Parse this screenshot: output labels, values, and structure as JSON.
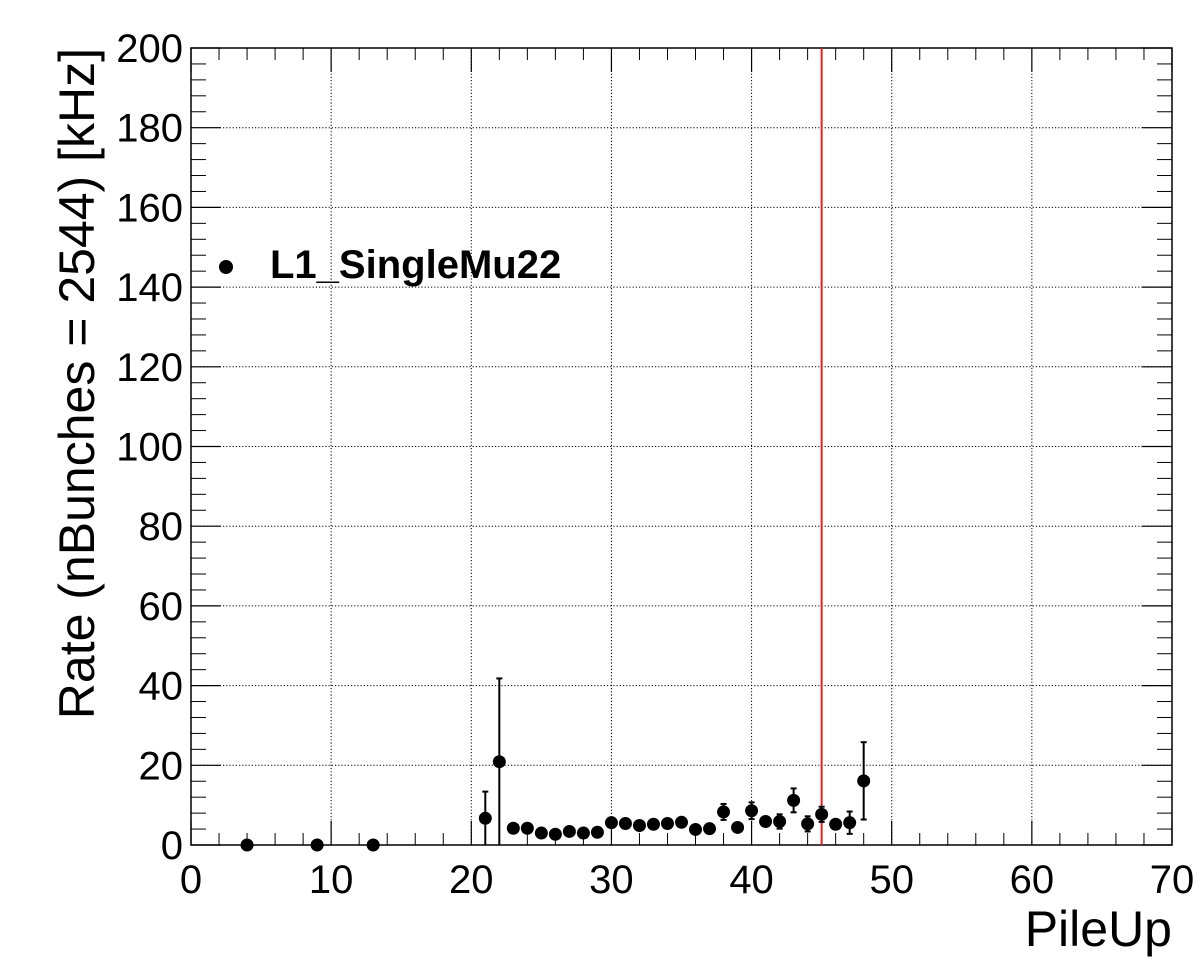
{
  "chart_data": {
    "type": "scatter",
    "xlabel": "PileUp",
    "ylabel": "Rate (nBunches = 2544) [kHz]",
    "xlim": [
      0,
      70
    ],
    "ylim": [
      0,
      200
    ],
    "x_ticks": [
      "0",
      "10",
      "20",
      "30",
      "40",
      "50",
      "60",
      "70"
    ],
    "y_ticks": [
      "0",
      "20",
      "40",
      "60",
      "80",
      "100",
      "120",
      "140",
      "160",
      "180",
      "200"
    ],
    "grid": true,
    "legend_position": "top-left",
    "series": [
      {
        "name": "L1_SingleMu22",
        "color": "#000000",
        "points": [
          {
            "x": 4,
            "y": 0,
            "err": 0
          },
          {
            "x": 9,
            "y": 0,
            "err": 0
          },
          {
            "x": 13,
            "y": 0,
            "err": 0
          },
          {
            "x": 21,
            "y": 6.7,
            "err": 6.7
          },
          {
            "x": 22,
            "y": 20.9,
            "err": 20.9
          },
          {
            "x": 23,
            "y": 4.2,
            "err": 0.8
          },
          {
            "x": 24,
            "y": 4.2,
            "err": 0.8
          },
          {
            "x": 25,
            "y": 3.0,
            "err": 0.6
          },
          {
            "x": 26,
            "y": 2.7,
            "err": 0.6
          },
          {
            "x": 27,
            "y": 3.4,
            "err": 0.6
          },
          {
            "x": 28,
            "y": 3.0,
            "err": 0.6
          },
          {
            "x": 29,
            "y": 3.2,
            "err": 0.6
          },
          {
            "x": 30,
            "y": 5.6,
            "err": 0.8
          },
          {
            "x": 31,
            "y": 5.4,
            "err": 0.8
          },
          {
            "x": 32,
            "y": 4.9,
            "err": 0.8
          },
          {
            "x": 33,
            "y": 5.2,
            "err": 0.8
          },
          {
            "x": 34,
            "y": 5.4,
            "err": 0.9
          },
          {
            "x": 35,
            "y": 5.7,
            "err": 0.9
          },
          {
            "x": 36,
            "y": 3.9,
            "err": 0.9
          },
          {
            "x": 37,
            "y": 4.1,
            "err": 1.0
          },
          {
            "x": 38,
            "y": 8.3,
            "err": 2.0
          },
          {
            "x": 39,
            "y": 4.4,
            "err": 1.2
          },
          {
            "x": 40,
            "y": 8.6,
            "err": 2.1
          },
          {
            "x": 41,
            "y": 5.9,
            "err": 1.4
          },
          {
            "x": 42,
            "y": 5.9,
            "err": 1.8
          },
          {
            "x": 43,
            "y": 11.2,
            "err": 3.0
          },
          {
            "x": 44,
            "y": 5.3,
            "err": 1.9
          },
          {
            "x": 45,
            "y": 7.7,
            "err": 1.9
          },
          {
            "x": 46,
            "y": 5.2,
            "err": 1.4
          },
          {
            "x": 47,
            "y": 5.6,
            "err": 2.8
          },
          {
            "x": 48,
            "y": 16.1,
            "err": 9.7
          }
        ]
      }
    ],
    "reference_line": {
      "x": 45,
      "color": "#e8211e"
    }
  }
}
